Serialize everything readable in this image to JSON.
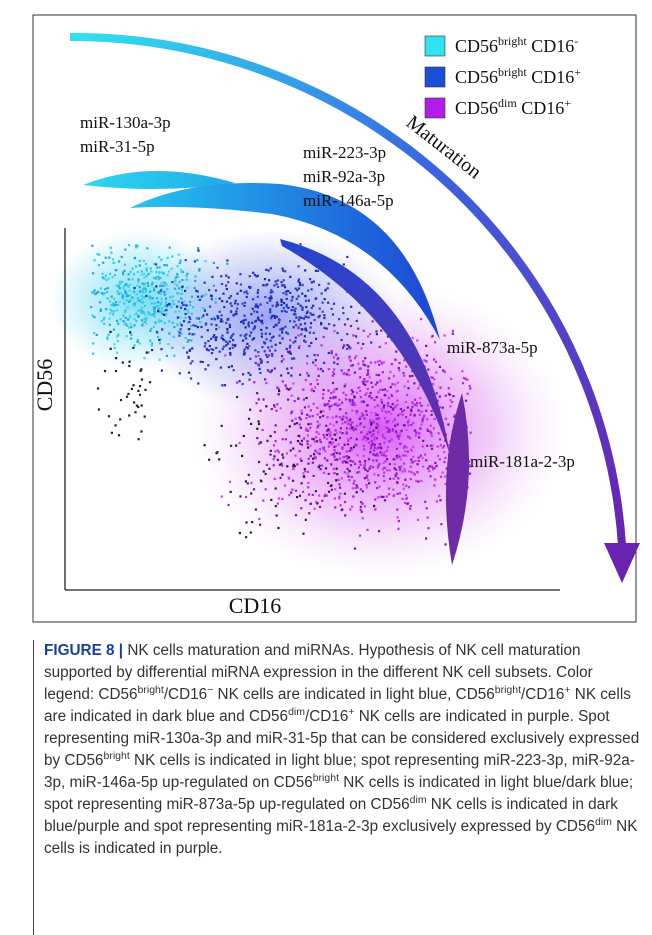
{
  "figure": {
    "legend": [
      {
        "color": "#2fe3f0",
        "label": [
          {
            "text": "CD56"
          },
          {
            "sup": "bright"
          },
          {
            "text": " CD16"
          },
          {
            "sup": "-"
          }
        ]
      },
      {
        "color": "#1c4fd8",
        "label": [
          {
            "text": "CD56"
          },
          {
            "sup": "bright"
          },
          {
            "text": " CD16"
          },
          {
            "sup": "+"
          }
        ]
      },
      {
        "color": "#b21ee8",
        "label": [
          {
            "text": "CD56"
          },
          {
            "sup": "dim"
          },
          {
            "text": " CD16"
          },
          {
            "sup": "+"
          }
        ]
      }
    ],
    "arrow_label": "Maturation",
    "y_axis": "CD56",
    "x_axis": "CD16",
    "spots": [
      {
        "labels": [
          "miR-130a-3p",
          "miR-31-5p"
        ]
      },
      {
        "labels": [
          "miR-223-3p",
          "miR-92a-3p",
          "miR-146a-5p"
        ]
      },
      {
        "labels": [
          "miR-873a-5p"
        ]
      },
      {
        "labels": [
          "miR-181a-2-3p"
        ]
      }
    ]
  },
  "caption": {
    "label": "FIGURE 8 |",
    "segments": [
      {
        "text": " NK cells maturation and miRNAs. Hypothesis of NK cell maturation supported by differential miRNA expression in the different NK cell subsets. Color legend: CD56"
      },
      {
        "sup": "bright"
      },
      {
        "text": "/CD16"
      },
      {
        "sup": "−"
      },
      {
        "text": " NK cells are indicated in light blue, CD56"
      },
      {
        "sup": "bright"
      },
      {
        "text": "/CD16"
      },
      {
        "sup": "+"
      },
      {
        "text": " NK cells are indicated in dark blue and CD56"
      },
      {
        "sup": "dim"
      },
      {
        "text": "/CD16"
      },
      {
        "sup": "+"
      },
      {
        "text": " NK cells are indicated in purple. Spot representing miR-130a-3p and miR-31-5p that can be considered exclusively expressed by CD56"
      },
      {
        "sup": "bright"
      },
      {
        "text": " NK cells is indicated in light blue; spot representing miR-223-3p, miR-92a-3p, miR-146a-5p up-regulated on CD56"
      },
      {
        "sup": "bright"
      },
      {
        "text": " NK cells is indicated in light blue/dark blue; spot representing miR-873a-5p up-regulated on CD56"
      },
      {
        "sup": "dim"
      },
      {
        "text": " NK cells is indicated in dark blue/purple and spot representing miR-181a-2-3p exclusively expressed by CD56"
      },
      {
        "sup": "dim"
      },
      {
        "text": " NK cells is indicated in purple."
      }
    ]
  }
}
